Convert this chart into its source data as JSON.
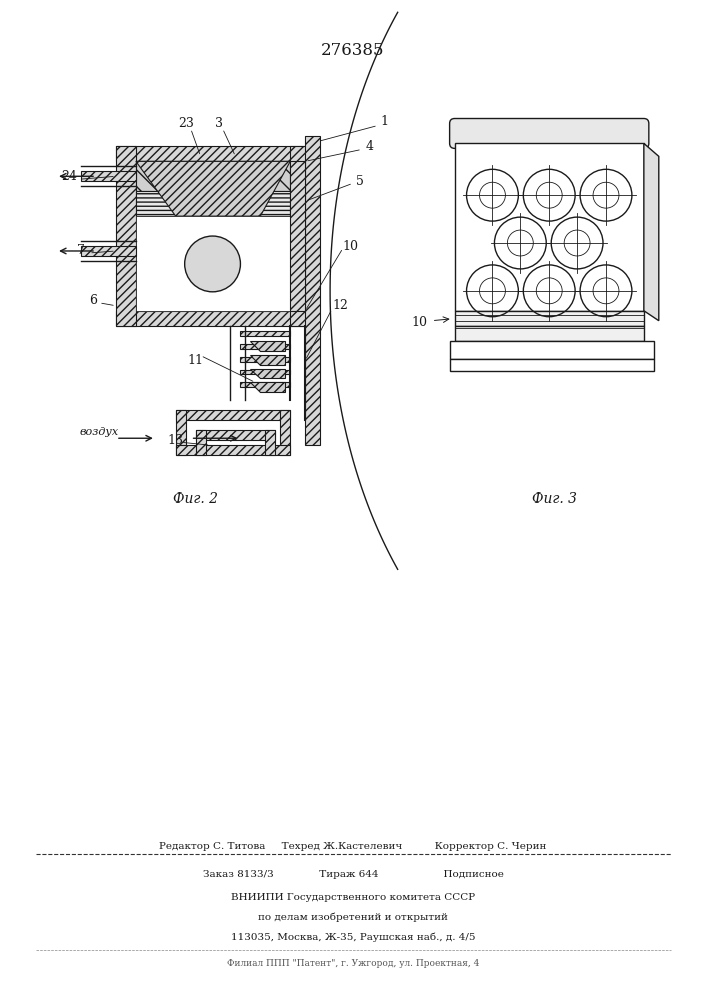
{
  "patent_number": "276385",
  "fig2_caption": "Фиг. 2",
  "fig3_caption": "Фиг. 3",
  "line_color": "#1a1a1a",
  "footer_line1": "Редактор С. Титова     Техред Ж.Кастелевич          Корректор С. Черин",
  "footer_line2": "Заказ 8133/3              Тираж 644                    Подписное",
  "footer_line3": "ВНИИПИ Государственного комитета СССР",
  "footer_line4": "по делам изобретений и открытий",
  "footer_line5": "113035, Москва, Ж-35, Раушская наб., д. 4/5",
  "footer_line6": "Филиал ППП \"Патент\", г. Ужгород, ул. Проектная, 4"
}
